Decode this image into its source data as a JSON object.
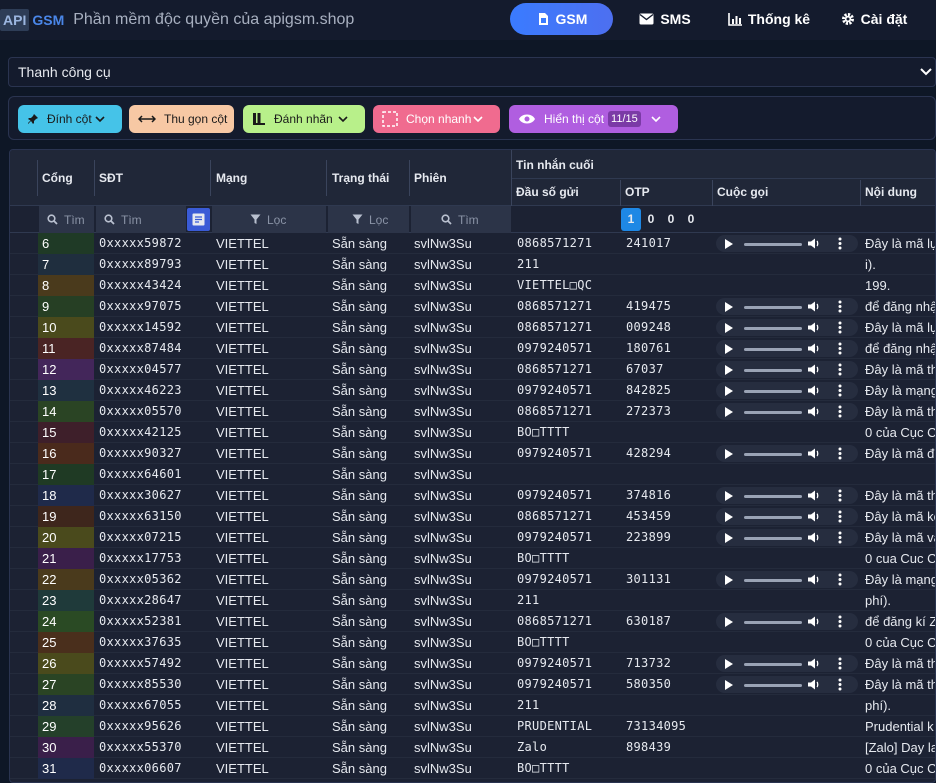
{
  "brand": {
    "api": "API",
    "gsm": "GSM",
    "tagline": "Phần mềm độc quyền của apigsm.shop"
  },
  "nav": {
    "gsm": "GSM",
    "sms": "SMS",
    "stats": "Thống kê",
    "settings": "Cài đặt"
  },
  "toolbar": {
    "label": "Thanh công cụ"
  },
  "actions": {
    "pin": "Đính cột",
    "collapse": "Thu gọn cột",
    "label": "Đánh nhãn",
    "quick": "Chọn nhanh",
    "show": "Hiển thị cột",
    "show_count": "11/15"
  },
  "colors": {
    "pin": "#45c3e8",
    "collapse": "#f7c8a4",
    "label": "#b8f08a",
    "quick": "#f06b8f",
    "show": "#b05ee0",
    "active_nav": "#3a7bff"
  },
  "table": {
    "headers": {
      "port": "Cổng",
      "phone": "SĐT",
      "network": "Mạng",
      "status": "Trạng thái",
      "session": "Phiên",
      "last_msg": "Tin nhắn cuối",
      "sender": "Đầu số gửi",
      "otp": "OTP",
      "call": "Cuộc gọi",
      "content": "Nội dung"
    },
    "filters": {
      "search": "Tìm",
      "filter": "Lọc"
    },
    "otp_filter": [
      "1",
      "0",
      "0",
      "0"
    ],
    "rows": [
      {
        "port": "6",
        "color": "#1f3a26",
        "phone": "0xxxxx59872",
        "net": "VIETTEL",
        "status": "Sẵn sàng",
        "session": "svlNw3Su",
        "sender": "0868571271",
        "otp": "241017",
        "audio": true,
        "content": "Đây là mã lự"
      },
      {
        "port": "7",
        "color": "#1f2e3e",
        "phone": "0xxxxx89793",
        "net": "VIETTEL",
        "status": "Sẵn sàng",
        "session": "svlNw3Su",
        "sender": "211",
        "otp": "",
        "audio": false,
        "content": "i)."
      },
      {
        "port": "8",
        "color": "#4a3a1c",
        "phone": "0xxxxx43424",
        "net": "VIETTEL",
        "status": "Sẵn sàng",
        "session": "svlNw3Su",
        "sender": "VIETTEL□QC",
        "otp": "",
        "audio": false,
        "content": "199."
      },
      {
        "port": "9",
        "color": "#263f24",
        "phone": "0xxxxx97075",
        "net": "VIETTEL",
        "status": "Sẵn sàng",
        "session": "svlNw3Su",
        "sender": "0868571271",
        "otp": "419475",
        "audio": true,
        "content": "để đăng nhậ"
      },
      {
        "port": "10",
        "color": "#4a4a1c",
        "phone": "0xxxxx14592",
        "net": "VIETTEL",
        "status": "Sẵn sàng",
        "session": "svlNw3Su",
        "sender": "0868571271",
        "otp": "009248",
        "audio": true,
        "content": "Đây là mã lự"
      },
      {
        "port": "11",
        "color": "#4a2424",
        "phone": "0xxxxx87484",
        "net": "VIETTEL",
        "status": "Sẵn sàng",
        "session": "svlNw3Su",
        "sender": "0979240571",
        "otp": "180761",
        "audio": true,
        "content": "để đăng nhậ"
      },
      {
        "port": "12",
        "color": "#43265a",
        "phone": "0xxxxx04577",
        "net": "VIETTEL",
        "status": "Sẵn sàng",
        "session": "svlNw3Su",
        "sender": "0868571271",
        "otp": "67037",
        "audio": true,
        "content": "Đây là mã th"
      },
      {
        "port": "13",
        "color": "#1f3040",
        "phone": "0xxxxx46223",
        "net": "VIETTEL",
        "status": "Sẵn sàng",
        "session": "svlNw3Su",
        "sender": "0979240571",
        "otp": "842825",
        "audio": true,
        "content": "Đây là mạng"
      },
      {
        "port": "14",
        "color": "#2a4424",
        "phone": "0xxxxx05570",
        "net": "VIETTEL",
        "status": "Sẵn sàng",
        "session": "svlNw3Su",
        "sender": "0868571271",
        "otp": "272373",
        "audio": true,
        "content": "Đây là mã th"
      },
      {
        "port": "15",
        "color": "#3e1f2a",
        "phone": "0xxxxx42125",
        "net": "VIETTEL",
        "status": "Sẵn sàng",
        "session": "svlNw3Su",
        "sender": "BO□TTTT",
        "otp": "",
        "audio": false,
        "content": "0 của Cục Cả"
      },
      {
        "port": "16",
        "color": "#4a2a1c",
        "phone": "0xxxxx90327",
        "net": "VIETTEL",
        "status": "Sẵn sàng",
        "session": "svlNw3Su",
        "sender": "0979240571",
        "otp": "428294",
        "audio": true,
        "content": "Đây là mã đ"
      },
      {
        "port": "17",
        "color": "#1f3a24",
        "phone": "0xxxxx64601",
        "net": "VIETTEL",
        "status": "Sẵn sàng",
        "session": "svlNw3Su",
        "sender": "",
        "otp": "",
        "audio": false,
        "content": ""
      },
      {
        "port": "18",
        "color": "#1f2a4a",
        "phone": "0xxxxx30627",
        "net": "VIETTEL",
        "status": "Sẵn sàng",
        "session": "svlNw3Su",
        "sender": "0979240571",
        "otp": "374816",
        "audio": true,
        "content": "Đây là mã th"
      },
      {
        "port": "19",
        "color": "#3e261c",
        "phone": "0xxxxx63150",
        "net": "VIETTEL",
        "status": "Sẵn sàng",
        "session": "svlNw3Su",
        "sender": "0868571271",
        "otp": "453459",
        "audio": true,
        "content": "Đây là mã kè"
      },
      {
        "port": "20",
        "color": "#4a4a1c",
        "phone": "0xxxxx07215",
        "net": "VIETTEL",
        "status": "Sẵn sàng",
        "session": "svlNw3Su",
        "sender": "0979240571",
        "otp": "223899",
        "audio": true,
        "content": "Đây là mã và"
      },
      {
        "port": "21",
        "color": "#3a1f4a",
        "phone": "0xxxxx17753",
        "net": "VIETTEL",
        "status": "Sẵn sàng",
        "session": "svlNw3Su",
        "sender": "BO□TTTT",
        "otp": "",
        "audio": false,
        "content": "0 cua Cuc Ca"
      },
      {
        "port": "22",
        "color": "#4a3a1c",
        "phone": "0xxxxx05362",
        "net": "VIETTEL",
        "status": "Sẵn sàng",
        "session": "svlNw3Su",
        "sender": "0979240571",
        "otp": "301131",
        "audio": true,
        "content": "Đây là mạng"
      },
      {
        "port": "23",
        "color": "#1f3a3a",
        "phone": "0xxxxx28647",
        "net": "VIETTEL",
        "status": "Sẵn sàng",
        "session": "svlNw3Su",
        "sender": "211",
        "otp": "",
        "audio": false,
        "content": "phí)."
      },
      {
        "port": "24",
        "color": "#2a4a24",
        "phone": "0xxxxx52381",
        "net": "VIETTEL",
        "status": "Sẵn sàng",
        "session": "svlNw3Su",
        "sender": "0868571271",
        "otp": "630187",
        "audio": true,
        "content": "để đăng kí Z"
      },
      {
        "port": "25",
        "color": "#4a2f1c",
        "phone": "0xxxxx37635",
        "net": "VIETTEL",
        "status": "Sẵn sàng",
        "session": "svlNw3Su",
        "sender": "BO□TTTT",
        "otp": "",
        "audio": false,
        "content": "0 của Cục Cả"
      },
      {
        "port": "26",
        "color": "#4a4a1c",
        "phone": "0xxxxx57492",
        "net": "VIETTEL",
        "status": "Sẵn sàng",
        "session": "svlNw3Su",
        "sender": "0979240571",
        "otp": "713732",
        "audio": true,
        "content": "Đây là mã th"
      },
      {
        "port": "27",
        "color": "#2a4424",
        "phone": "0xxxxx85530",
        "net": "VIETTEL",
        "status": "Sẵn sàng",
        "session": "svlNw3Su",
        "sender": "0979240571",
        "otp": "580350",
        "audio": true,
        "content": "Đây là mã th"
      },
      {
        "port": "28",
        "color": "#1f2e40",
        "phone": "0xxxxx67055",
        "net": "VIETTEL",
        "status": "Sẵn sàng",
        "session": "svlNw3Su",
        "sender": "211",
        "otp": "",
        "audio": false,
        "content": "phí)."
      },
      {
        "port": "29",
        "color": "#24402a",
        "phone": "0xxxxx95626",
        "net": "VIETTEL",
        "status": "Sẵn sàng",
        "session": "svlNw3Su",
        "sender": "PRUDENTIAL",
        "otp": "73134095",
        "audio": false,
        "content": "Prudential k"
      },
      {
        "port": "30",
        "color": "#3a1f4a",
        "phone": "0xxxxx55370",
        "net": "VIETTEL",
        "status": "Sẵn sàng",
        "session": "svlNw3Su",
        "sender": "Zalo",
        "otp": "898439",
        "audio": false,
        "content": "[Zalo] Day la"
      },
      {
        "port": "31",
        "color": "#1f2a4a",
        "phone": "0xxxxx06607",
        "net": "VIETTEL",
        "status": "Sẵn sàng",
        "session": "svlNw3Su",
        "sender": "BO□TTTT",
        "otp": "",
        "audio": false,
        "content": "0 của Cục Cả"
      }
    ]
  }
}
